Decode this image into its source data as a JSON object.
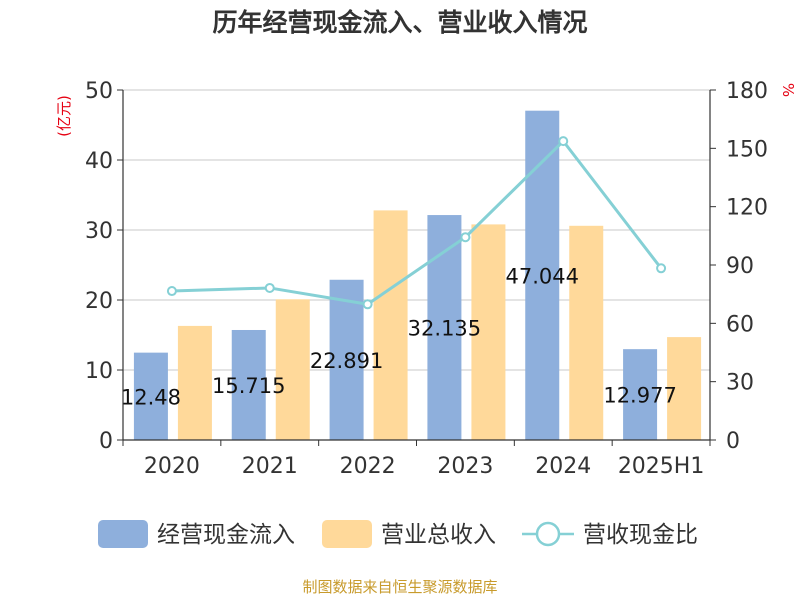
{
  "chart_data": {
    "type": "bar",
    "title": "历年经营现金流入、营业收入情况",
    "categories": [
      "2020",
      "2021",
      "2022",
      "2023",
      "2024",
      "2025H1"
    ],
    "series": [
      {
        "name": "经营现金流入",
        "kind": "bar",
        "axis": "left",
        "color": "#8eafdc",
        "values": [
          12.48,
          15.715,
          22.891,
          32.135,
          47.044,
          12.977
        ]
      },
      {
        "name": "营业总收入",
        "kind": "bar",
        "axis": "left",
        "color": "#ffd99a",
        "values": [
          16.3,
          20.1,
          32.8,
          30.8,
          30.6,
          14.7
        ]
      },
      {
        "name": "营收现金比",
        "kind": "line",
        "axis": "right",
        "color": "#85d0d5",
        "values": [
          76.6,
          78.2,
          69.8,
          104.3,
          153.7,
          88.3
        ]
      }
    ],
    "data_labels": [
      "12.48",
      "15.715",
      "22.891",
      "32.135",
      "47.044",
      "12.977"
    ],
    "y_left": {
      "label": "(亿元)",
      "min": 0,
      "max": 50,
      "ticks": [
        0,
        10,
        20,
        30,
        40,
        50
      ]
    },
    "y_right": {
      "label": "%",
      "min": 0,
      "max": 180,
      "ticks": [
        0,
        30,
        60,
        90,
        120,
        150,
        180
      ]
    },
    "grid": true,
    "legend_position": "bottom",
    "source": "制图数据来自恒生聚源数据库"
  }
}
